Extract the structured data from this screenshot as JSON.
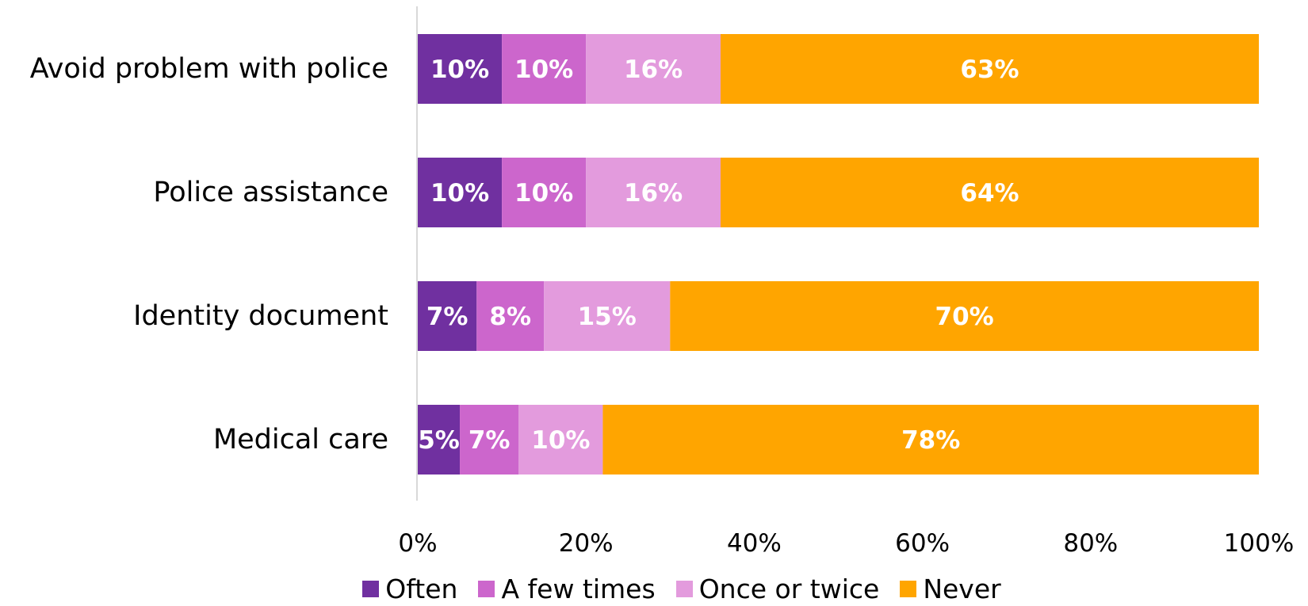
{
  "chart_data": {
    "type": "bar",
    "orientation": "horizontal",
    "stacked": true,
    "categories": [
      "Avoid problem with police",
      "Police assistance",
      "Identity document",
      "Medical care"
    ],
    "series": [
      {
        "name": "Often",
        "values": [
          10,
          10,
          7,
          5
        ],
        "color": "#7030A0"
      },
      {
        "name": "A few times",
        "values": [
          10,
          10,
          8,
          7
        ],
        "color": "#CC66CC"
      },
      {
        "name": "Once or twice",
        "values": [
          16,
          16,
          15,
          10
        ],
        "color": "#E39BDD"
      },
      {
        "name": "Never",
        "values": [
          63,
          64,
          70,
          78
        ],
        "color": "#FFA500"
      }
    ],
    "data_labels": [
      [
        "10%",
        "10%",
        "7%",
        "5%"
      ],
      [
        "10%",
        "10%",
        "8%",
        "7%"
      ],
      [
        "16%",
        "16%",
        "15%",
        "10%"
      ],
      [
        "63%",
        "64%",
        "70%",
        "78%"
      ]
    ],
    "x_ticks": [
      "0%",
      "20%",
      "40%",
      "60%",
      "80%",
      "100%"
    ],
    "xlim": [
      0,
      100
    ],
    "title": "",
    "xlabel": "",
    "ylabel": "",
    "grid": false,
    "legend_position": "bottom"
  }
}
